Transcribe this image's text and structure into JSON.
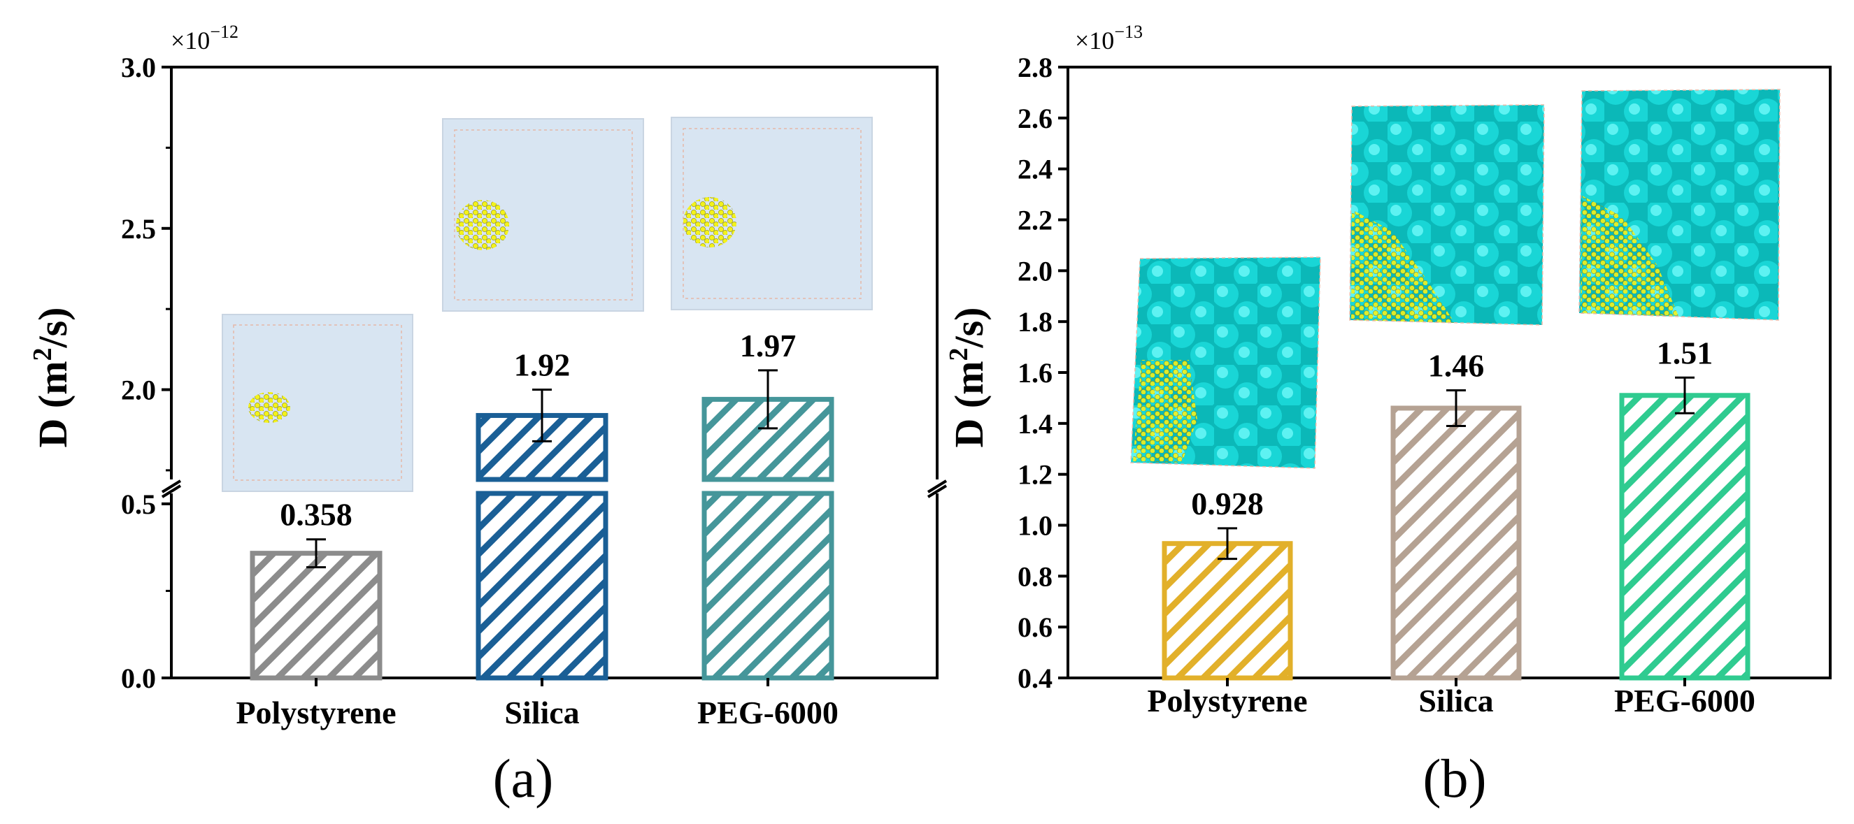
{
  "chart_data": [
    {
      "type": "bar",
      "panel_label": "(a)",
      "ylabel": "D (m",
      "ylabel_sup": "2",
      "ylabel_tail": "/s)",
      "multiplier": "×10",
      "multiplier_exp": "−12",
      "categories": [
        "Polystyrene",
        "Silica",
        "PEG-6000"
      ],
      "values": [
        0.358,
        1.92,
        1.97
      ],
      "value_labels": [
        "0.358",
        "1.92",
        "1.97"
      ],
      "errors": [
        0.04,
        0.08,
        0.09
      ],
      "colors": [
        "#8c8c8c",
        "#1a5f96",
        "#45969a"
      ],
      "broken_axis": {
        "lower": [
          0.0,
          0.55
        ],
        "upper": [
          1.7,
          3.0
        ]
      },
      "lower_ticks": [
        {
          "v": 0.0,
          "t": "0.0"
        },
        {
          "v": 0.5,
          "t": "0.5"
        }
      ],
      "upper_ticks": [
        {
          "v": 2.0,
          "t": "2.0"
        },
        {
          "v": 2.5,
          "t": "2.5"
        },
        {
          "v": 3.0,
          "t": "3.0"
        }
      ],
      "insets": [
        "polystyrene-simulation-box",
        "silica-simulation-box",
        "peg-simulation-box"
      ]
    },
    {
      "type": "bar",
      "panel_label": "(b)",
      "ylabel": "D (m",
      "ylabel_sup": "2",
      "ylabel_tail": "/s)",
      "multiplier": "×10",
      "multiplier_exp": "−13",
      "categories": [
        "Polystyrene",
        "Silica",
        "PEG-6000"
      ],
      "values": [
        0.928,
        1.46,
        1.51
      ],
      "value_labels": [
        "0.928",
        "1.46",
        "1.51"
      ],
      "errors": [
        0.06,
        0.07,
        0.07
      ],
      "colors": [
        "#e2b02a",
        "#b5a293",
        "#2fcb90"
      ],
      "ylim": [
        0.4,
        2.8
      ],
      "ticks": [
        {
          "v": 0.4,
          "t": "0.4"
        },
        {
          "v": 0.6,
          "t": "0.6"
        },
        {
          "v": 0.8,
          "t": "0.8"
        },
        {
          "v": 1.0,
          "t": "1.0"
        },
        {
          "v": 1.2,
          "t": "1.2"
        },
        {
          "v": 1.4,
          "t": "1.4"
        },
        {
          "v": 1.6,
          "t": "1.6"
        },
        {
          "v": 1.8,
          "t": "1.8"
        },
        {
          "v": 2.0,
          "t": "2.0"
        },
        {
          "v": 2.2,
          "t": "2.2"
        },
        {
          "v": 2.4,
          "t": "2.4"
        },
        {
          "v": 2.6,
          "t": "2.6"
        },
        {
          "v": 2.8,
          "t": "2.8"
        }
      ],
      "insets": [
        "polystyrene-cluster-snapshot",
        "silica-cluster-snapshot",
        "peg-cluster-snapshot"
      ]
    }
  ]
}
